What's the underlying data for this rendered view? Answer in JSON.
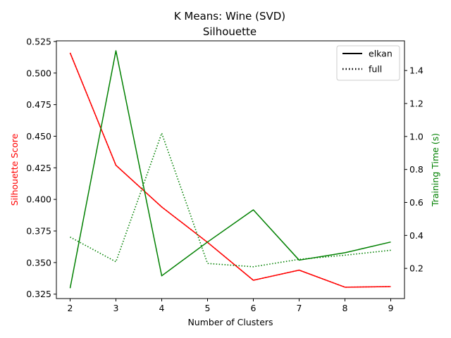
{
  "chart_data": {
    "type": "line",
    "title": "K Means: Wine (SVD)",
    "subtitle": "Silhouette",
    "xlabel": "Number of Clusters",
    "ylabel_left": "Silhouette Score",
    "ylabel_right": "Training Time (s)",
    "x": [
      2,
      3,
      4,
      5,
      6,
      7,
      8,
      9
    ],
    "x_ticks": [
      "2",
      "3",
      "4",
      "5",
      "6",
      "7",
      "8",
      "9"
    ],
    "xlim": [
      1.7,
      9.3
    ],
    "ylim_left": [
      0.3215,
      0.5255
    ],
    "ylim_right": [
      0.017,
      1.58
    ],
    "y_ticks_left": [
      "0.325",
      "0.350",
      "0.375",
      "0.400",
      "0.425",
      "0.450",
      "0.475",
      "0.500",
      "0.525"
    ],
    "y_ticks_right": [
      "0.2",
      "0.4",
      "0.6",
      "0.8",
      "1.0",
      "1.2",
      "1.4"
    ],
    "left_color": "#ff0000",
    "right_color": "#008000",
    "grid": false,
    "legend_position": "top-right",
    "legend": [
      {
        "label": "elkan",
        "style": "solid"
      },
      {
        "label": "full",
        "style": "dotted"
      }
    ],
    "series": [
      {
        "axis": "left",
        "style": "solid",
        "color": "#ff0000",
        "values": [
          0.516,
          0.427,
          0.394,
          0.366,
          0.336,
          0.344,
          0.3305,
          0.331
        ]
      },
      {
        "axis": "left",
        "style": "dotted",
        "color": "#ff0000",
        "values": [
          0.516,
          0.427,
          0.394,
          0.366,
          0.336,
          0.344,
          0.3305,
          0.331
        ]
      },
      {
        "axis": "right",
        "style": "solid",
        "color": "#008000",
        "values": [
          0.08,
          1.52,
          0.155,
          0.36,
          0.555,
          0.25,
          0.295,
          0.36
        ]
      },
      {
        "axis": "right",
        "style": "dotted",
        "color": "#008000",
        "values": [
          0.39,
          0.24,
          1.02,
          0.23,
          0.21,
          0.255,
          0.28,
          0.31
        ]
      }
    ]
  }
}
